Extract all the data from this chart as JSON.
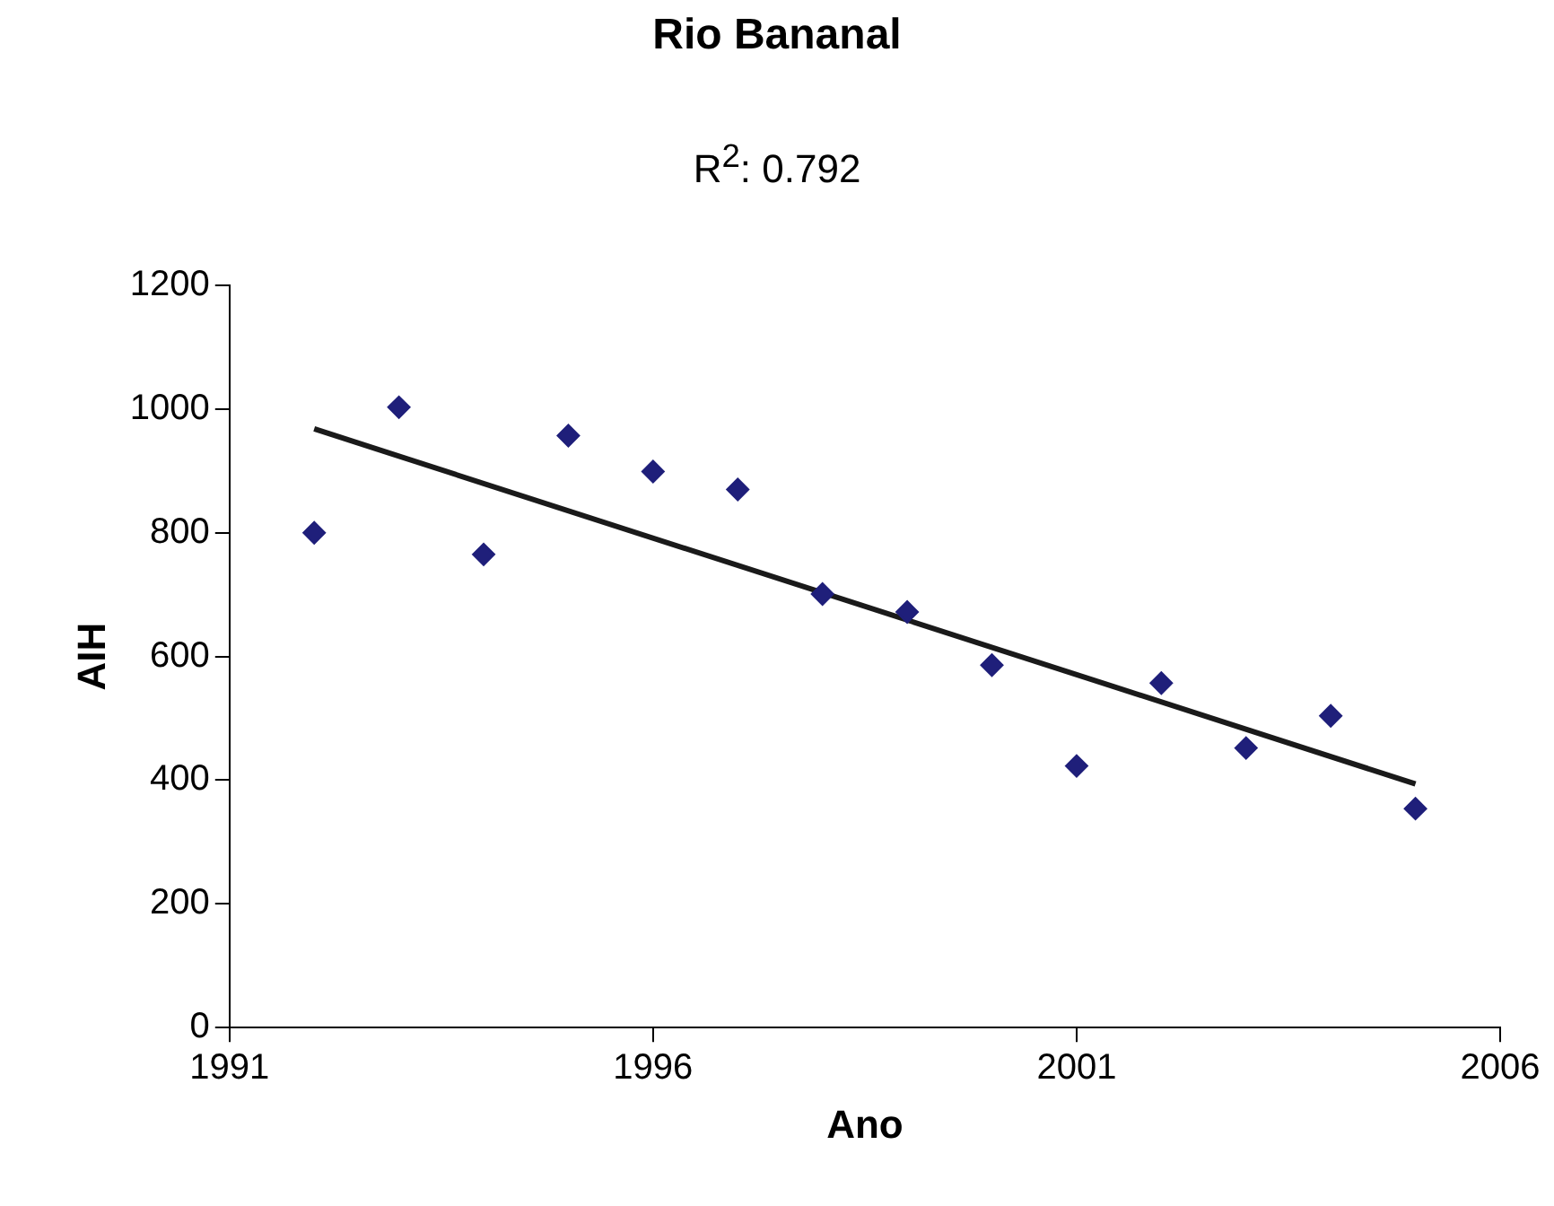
{
  "chart_data": {
    "type": "scatter",
    "title": "Rio Bananal",
    "subtitle": "R$^{2}$: 0.792",
    "xlabel": "Ano",
    "ylabel": "AIH",
    "xlim": [
      1991,
      2006
    ],
    "xticks": [
      1991,
      1996,
      2001,
      2006
    ],
    "ylim": [
      0,
      1200
    ],
    "yticks": [
      0,
      200,
      400,
      600,
      800,
      1000,
      1200
    ],
    "grid": false,
    "legend": false,
    "marker": "diamond",
    "series": [
      {
        "color": "#1f1f7a",
        "x": [
          1992,
          1993,
          1994,
          1995,
          1996,
          1997,
          1998,
          1999,
          2000,
          2001,
          2002,
          2003,
          2004,
          2005
        ],
        "values": [
          800,
          1003,
          765,
          957,
          899,
          870,
          701,
          672,
          586,
          423,
          557,
          452,
          504,
          354
        ]
      },
      {
        "type": "line",
        "color": "#1a1a1a",
        "marker": "none",
        "x": [
          1992,
          2005
        ],
        "values": [
          968,
          394
        ]
      }
    ]
  }
}
